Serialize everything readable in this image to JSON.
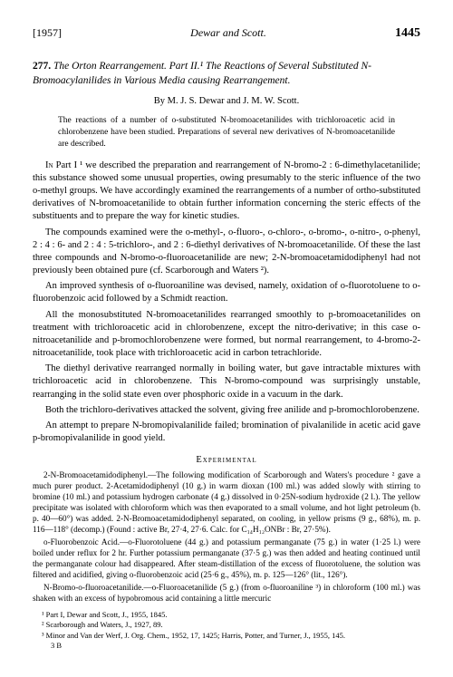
{
  "header": {
    "year": "[1957]",
    "running": "Dewar and Scott.",
    "page": "1445"
  },
  "title": {
    "number": "277.",
    "line": "The Orton Rearrangement. Part II.¹ The Reactions of Several Substituted N-Bromoacylanilides in Various Media causing Rearrangement."
  },
  "authors": "By M. J. S. Dewar and J. M. W. Scott.",
  "abstract": "The reactions of a number of o-substituted N-bromoacetanilides with trichloroacetic acid in chlorobenzene have been studied. Preparations of several new derivatives of N-bromoacetanilide are described.",
  "paragraphs": {
    "p1": "In Part I ¹ we described the preparation and rearrangement of N-bromo-2 : 6-dimethylacetanilide; this substance showed some unusual properties, owing presumably to the steric influence of the two o-methyl groups. We have accordingly examined the rearrangements of a number of ortho-substituted derivatives of N-bromoacetanilide to obtain further information concerning the steric effects of the substituents and to prepare the way for kinetic studies.",
    "p2": "The compounds examined were the o-methyl-, o-fluoro-, o-chloro-, o-bromo-, o-nitro-, o-phenyl, 2 : 4 : 6- and 2 : 4 : 5-trichloro-, and 2 : 6-diethyl derivatives of N-bromoacetanilide. Of these the last three compounds and N-bromo-o-fluoroacetanilide are new; 2-N-bromoacetamidodiphenyl had not previously been obtained pure (cf. Scarborough and Waters ²).",
    "p3": "An improved synthesis of o-fluoroaniline was devised, namely, oxidation of o-fluorotoluene to o-fluorobenzoic acid followed by a Schmidt reaction.",
    "p4": "All the monosubstituted N-bromoacetanilides rearranged smoothly to p-bromoacetanilides on treatment with trichloroacetic acid in chlorobenzene, except the nitro-derivative; in this case o-nitroacetanilide and p-bromochlorobenzene were formed, but normal rearrangement, to 4-bromo-2-nitroacetanilide, took place with trichloroacetic acid in carbon tetrachloride.",
    "p5": "The diethyl derivative rearranged normally in boiling water, but gave intractable mixtures with trichloroacetic acid in chlorobenzene. This N-bromo-compound was surprisingly unstable, rearranging in the solid state even over phosphoric oxide in a vacuum in the dark.",
    "p6": "Both the trichloro-derivatives attacked the solvent, giving free anilide and p-bromochlorobenzene.",
    "p7": "An attempt to prepare N-bromopivalanilide failed; bromination of pivalanilide in acetic acid gave p-bromopivalanilide in good yield."
  },
  "expHead": "Experimental",
  "experimental": {
    "e1": "2-N-Bromoacetamidodiphenyl.—The following modification of Scarborough and Waters's procedure ² gave a much purer product. 2-Acetamidodiphenyl (10 g.) in warm dioxan (100 ml.) was added slowly with stirring to bromine (10 ml.) and potassium hydrogen carbonate (4 g.) dissolved in 0·25N-sodium hydroxide (2 l.). The yellow precipitate was isolated with chloroform which was then evaporated to a small volume, and hot light petroleum (b. p. 40—60°) was added. 2-N-Bromoacetamidodiphenyl separated, on cooling, in yellow prisms (9 g., 68%), m. p. 116—118° (decomp.) (Found : active Br, 27·4, 27·6. Calc. for C₁₄H₁₂ONBr : Br, 27·5%).",
    "e2": "o-Fluorobenzoic Acid.—o-Fluorotoluene (44 g.) and potassium permanganate (75 g.) in water (1·25 l.) were boiled under reflux for 2 hr. Further potassium permanganate (37·5 g.) was then added and heating continued until the permanganate colour had disappeared. After steam-distillation of the excess of fluorotoluene, the solution was filtered and acidified, giving o-fluorobenzoic acid (25·6 g., 45%), m. p. 125—126° (lit., 126°).",
    "e3": "N-Bromo-o-fluoroacetanilide.—o-Fluoroacetanilide (5 g.) (from o-fluoroaniline ³) in chloroform (100 ml.) was shaken with an excess of hypobromous acid containing a little mercuric"
  },
  "footnotes": {
    "f1": "¹ Part I, Dewar and Scott, J., 1955, 1845.",
    "f2": "² Scarborough and Waters, J., 1927, 89.",
    "f3": "³ Minor and Van der Werf, J. Org. Chem., 1952, 17, 1425; Harris, Potter, and Turner, J., 1955, 145.",
    "sig": "3 B"
  }
}
